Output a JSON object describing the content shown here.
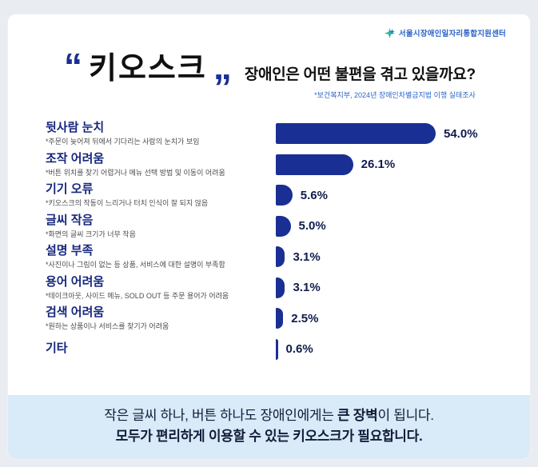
{
  "logo": {
    "text": "서울시장애인일자리통합지원센터"
  },
  "title": {
    "open_quote": "“",
    "close_quote": "”",
    "keyword": "키오스크",
    "question": "장애인은 어떤 불편을 겪고 있을까요?",
    "source": "*보건복지부, 2024년 장애인차별금지법 이행 실태조사"
  },
  "chart_data": {
    "type": "bar",
    "orientation": "horizontal",
    "unit": "%",
    "title": "장애인은 어떤 불편을 겪고 있을까요?",
    "source": "*보건복지부, 2024년 장애인차별금지법 이행 실태조사",
    "xlim": [
      0,
      60
    ],
    "grid": false,
    "legend": false,
    "bar_color": "#1a2f93",
    "categories": [
      "뒷사람 눈치",
      "조작 어려움",
      "기기 오류",
      "글씨 작음",
      "설명 부족",
      "용어 어려움",
      "검색 어려움",
      "기타"
    ],
    "values": [
      54.0,
      26.1,
      5.6,
      5.0,
      3.1,
      3.1,
      2.5,
      0.6
    ],
    "rows": [
      {
        "label": "뒷사람 눈치",
        "note": "*주문이 늦어져 뒤에서 기다리는 사람의 눈치가 보임",
        "value": 54.0,
        "value_label": "54.0%"
      },
      {
        "label": "조작 어려움",
        "note": "*버튼 위치를 찾기 어렵거나 메뉴 선택 방법 및 이동이 어려움",
        "value": 26.1,
        "value_label": "26.1%"
      },
      {
        "label": "기기 오류",
        "note": "*키오스크의 작동이 느리거나 터치 인식이 잘 되지 않음",
        "value": 5.6,
        "value_label": "5.6%"
      },
      {
        "label": "글씨 작음",
        "note": "*화면의 글씨 크기가 너무 작음",
        "value": 5.0,
        "value_label": "5.0%"
      },
      {
        "label": "설명 부족",
        "note": "*사진이나 그림이 없는 등 상품, 서비스에 대한 설명이 부족함",
        "value": 3.1,
        "value_label": "3.1%"
      },
      {
        "label": "용어 어려움",
        "note": "*테이크아웃, 사이드 메뉴, SOLD OUT 등 주문 용어가 어려움",
        "value": 3.1,
        "value_label": "3.1%"
      },
      {
        "label": "검색 어려움",
        "note": "*원하는 상품이나 서비스를 찾기가 어려움",
        "value": 2.5,
        "value_label": "2.5%"
      },
      {
        "label": "기타",
        "note": "",
        "value": 0.6,
        "value_label": "0.6%"
      }
    ]
  },
  "banner": {
    "line1_pre": "작은 글씨 하나, 버튼 하나도 장애인에게는 ",
    "line1_bold": "큰 장벽",
    "line1_post": "이 됩니다.",
    "line2_bold": "모두가 편리하게 이용할 수 있는 키오스크가 필요합니다."
  },
  "colors": {
    "bar": "#1a2f93",
    "label_navy": "#16277d",
    "banner_bg": "#d9eaf8",
    "accent_blue": "#2a63c8"
  }
}
